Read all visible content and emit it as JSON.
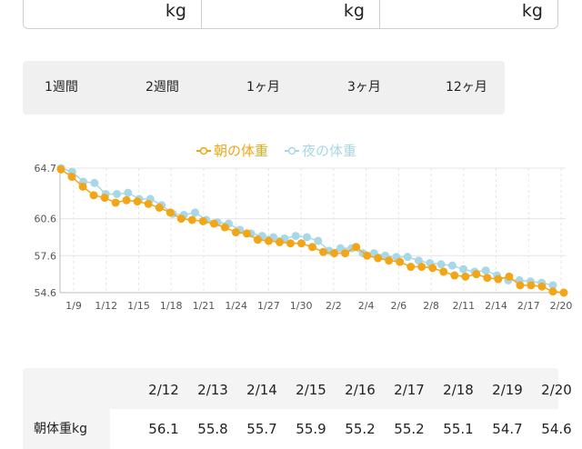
{
  "inputs": [
    {
      "unit": "kg"
    },
    {
      "unit": "kg"
    },
    {
      "unit": "kg"
    }
  ],
  "period_tabs": [
    "1週間",
    "2週間",
    "1ヶ月",
    "3ヶ月",
    "12ヶ月"
  ],
  "chart_data": {
    "type": "line",
    "series": [
      {
        "name": "朝の体重",
        "color": "#f2a516",
        "values": [
          64.6,
          64.0,
          63.2,
          62.5,
          62.3,
          61.9,
          62.1,
          62.0,
          61.8,
          61.5,
          61.1,
          60.6,
          60.5,
          60.4,
          60.2,
          59.9,
          59.5,
          59.4,
          58.9,
          58.8,
          58.7,
          58.6,
          58.6,
          58.3,
          57.9,
          57.8,
          57.8,
          58.3,
          57.6,
          57.4,
          57.2,
          57.1,
          56.7,
          56.7,
          56.6,
          56.3,
          56.0,
          55.9,
          56.1,
          55.8,
          55.7,
          55.9,
          55.2,
          55.2,
          55.1,
          54.7,
          54.6
        ]
      },
      {
        "name": "夜の体重",
        "color": "#a8d8e8",
        "values": [
          64.7,
          64.4,
          63.6,
          63.5,
          62.6,
          62.6,
          62.7,
          62.2,
          62.2,
          61.7,
          61.0,
          60.9,
          61.1,
          60.5,
          60.3,
          60.2,
          59.7,
          59.4,
          59.2,
          59.1,
          59.0,
          59.2,
          59.1,
          58.8,
          58.0,
          58.2,
          58.2,
          57.8,
          57.8,
          57.6,
          57.5,
          57.5,
          57.2,
          57.0,
          56.9,
          56.8,
          56.5,
          56.3,
          56.4,
          56.0,
          55.6,
          55.6,
          55.5,
          55.4,
          55.2
        ]
      }
    ],
    "y_ticks": [
      "64.7",
      "60.6",
      "57.6",
      "54.6"
    ],
    "ylim": [
      54.6,
      64.7
    ],
    "x_ticks": [
      "1/9",
      "1/12",
      "1/15",
      "1/18",
      "1/21",
      "1/24",
      "1/27",
      "1/30",
      "2/2",
      "2/4",
      "2/6",
      "2/8",
      "2/11",
      "2/14",
      "2/17",
      "2/20"
    ]
  },
  "table": {
    "dates": [
      "2/12",
      "2/13",
      "2/14",
      "2/15",
      "2/16",
      "2/17",
      "2/18",
      "2/19",
      "2/20"
    ],
    "row_label": "朝体重kg",
    "values": [
      "56.1",
      "55.8",
      "55.7",
      "55.9",
      "55.2",
      "55.2",
      "55.1",
      "54.7",
      "54.6"
    ]
  }
}
